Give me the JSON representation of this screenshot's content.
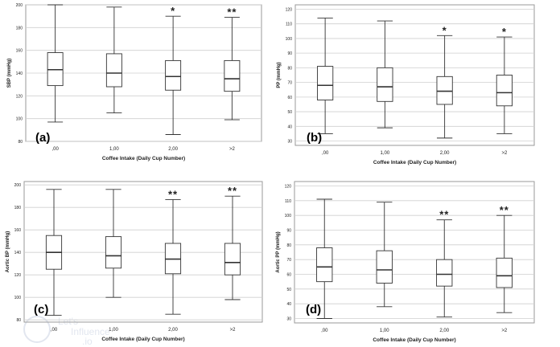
{
  "chart_data": [
    {
      "type": "box",
      "panel_label": "(a)",
      "ylabel": "SBP (mmHg)",
      "xlabel": "Coffee Intake (Daily Cup Number)",
      "categories": [
        ",00",
        "1,00",
        "2,00",
        ">2"
      ],
      "yticks": [
        "80",
        "100",
        "120",
        "140",
        "160",
        "180",
        "200"
      ],
      "ylim": [
        80,
        200
      ],
      "boxes": [
        {
          "category": ",00",
          "min": 97,
          "q1": 129,
          "median": 143,
          "q3": 158,
          "max": 200,
          "annotation": ""
        },
        {
          "category": "1,00",
          "min": 105,
          "q1": 128,
          "median": 140,
          "q3": 157,
          "max": 198,
          "annotation": ""
        },
        {
          "category": "2,00",
          "min": 86,
          "q1": 125,
          "median": 137,
          "q3": 151,
          "max": 190,
          "annotation": "*"
        },
        {
          "category": ">2",
          "min": 99,
          "q1": 124,
          "median": 135,
          "q3": 151,
          "max": 189,
          "annotation": "**"
        }
      ]
    },
    {
      "type": "box",
      "panel_label": "(b)",
      "ylabel": "PP (mmHg)",
      "xlabel": "Coffee Intake (Daily Cup Number)",
      "categories": [
        ",00",
        "1,00",
        "2,00",
        ">2"
      ],
      "yticks": [
        "30",
        "40",
        "50",
        "60",
        "70",
        "80",
        "90",
        "100",
        "110",
        "120"
      ],
      "ylim": [
        27,
        123
      ],
      "boxes": [
        {
          "category": ",00",
          "min": 35,
          "q1": 58,
          "median": 68,
          "q3": 81,
          "max": 114,
          "annotation": ""
        },
        {
          "category": "1,00",
          "min": 39,
          "q1": 57,
          "median": 67,
          "q3": 80,
          "max": 112,
          "annotation": ""
        },
        {
          "category": "2,00",
          "min": 32,
          "q1": 55,
          "median": 64,
          "q3": 74,
          "max": 102,
          "annotation": "*"
        },
        {
          "category": ">2",
          "min": 35,
          "q1": 54,
          "median": 63,
          "q3": 75,
          "max": 101,
          "annotation": "*"
        }
      ]
    },
    {
      "type": "box",
      "panel_label": "(c)",
      "ylabel": "Aortic BP (mmHg)",
      "xlabel": "Coffee Intake (Daily Cup Number)",
      "categories": [
        ",00",
        "1,00",
        "2,00",
        ">2"
      ],
      "yticks": [
        "80",
        "100",
        "120",
        "140",
        "160",
        "180",
        "200"
      ],
      "ylim": [
        78,
        203
      ],
      "boxes": [
        {
          "category": ",00",
          "min": 84,
          "q1": 125,
          "median": 140,
          "q3": 155,
          "max": 196,
          "annotation": ""
        },
        {
          "category": "1,00",
          "min": 100,
          "q1": 126,
          "median": 137,
          "q3": 154,
          "max": 196,
          "annotation": ""
        },
        {
          "category": "2,00",
          "min": 85,
          "q1": 121,
          "median": 134,
          "q3": 148,
          "max": 187,
          "annotation": "**"
        },
        {
          "category": ">2",
          "min": 98,
          "q1": 120,
          "median": 131,
          "q3": 148,
          "max": 190,
          "annotation": "**"
        }
      ]
    },
    {
      "type": "box",
      "panel_label": "(d)",
      "ylabel": "Aortic PP (mmHg)",
      "xlabel": "Coffee Intake (Daily Cup Number)",
      "categories": [
        ",00",
        "1,00",
        "2,00",
        ">2"
      ],
      "yticks": [
        "30",
        "40",
        "50",
        "60",
        "70",
        "80",
        "90",
        "100",
        "110",
        "120"
      ],
      "ylim": [
        27,
        123
      ],
      "boxes": [
        {
          "category": ",00",
          "min": 30,
          "q1": 55,
          "median": 65,
          "q3": 78,
          "max": 111,
          "annotation": ""
        },
        {
          "category": "1,00",
          "min": 38,
          "q1": 54,
          "median": 63,
          "q3": 76,
          "max": 109,
          "annotation": ""
        },
        {
          "category": "2,00",
          "min": 31,
          "q1": 52,
          "median": 60,
          "q3": 70,
          "max": 97,
          "annotation": "**"
        },
        {
          "category": ">2",
          "min": 34,
          "q1": 51,
          "median": 59,
          "q3": 71,
          "max": 100,
          "annotation": "**"
        }
      ]
    }
  ],
  "colors": {
    "grid": "#cfcfcf",
    "frame": "#9a9a9a",
    "box_fill": "#ffffff",
    "box_stroke": "#333333",
    "text": "#222222",
    "panel_label": "#000000",
    "watermark": "#dfe4ee"
  },
  "watermark": {
    "text_line1": "Let's",
    "text_line2": "Influence",
    "text_line3": ".io"
  }
}
